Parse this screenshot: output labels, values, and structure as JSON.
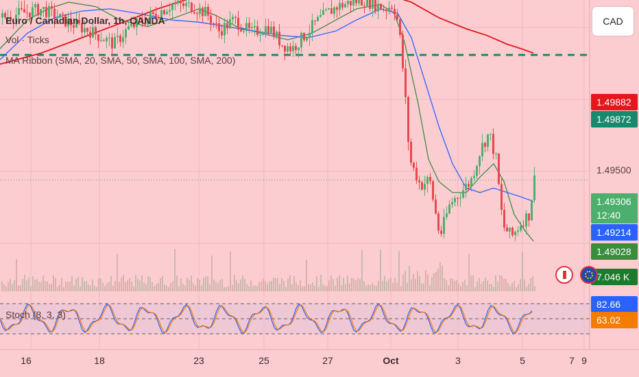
{
  "header": {
    "symbol_title": "Euro / Canadian Dollar, 1h, OANDA",
    "indicator_vol": "Vol · Ticks",
    "indicator_ma": "MA Ribbon (SMA, 20, SMA, 50, SMA, 100, SMA, 200)",
    "indicator_stoch": "Stoch (8, 3, 3)"
  },
  "currency_button": "CAD",
  "price_tags": [
    {
      "name": "sma200-price-tag",
      "label": "1.49882",
      "color": "#e5171c"
    },
    {
      "name": "alert-line-price-tag",
      "label": "1.49872",
      "color": "#178a6e"
    },
    {
      "name": "last-price-tag",
      "label": "1.49306",
      "color": "#4caf6d"
    },
    {
      "name": "countdown",
      "label": "12:40",
      "color": "#4caf6d"
    },
    {
      "name": "sma50-price-tag",
      "label": "1.49214",
      "color": "#2962ff"
    },
    {
      "name": "sma20-price-tag",
      "label": "1.49028",
      "color": "#388e3c"
    },
    {
      "name": "volume-tag",
      "label": "7.046 K",
      "color": "#2e7d32"
    },
    {
      "name": "stoch-k-tag",
      "label": "82.66",
      "color": "#2962ff"
    },
    {
      "name": "stoch-d-tag",
      "label": "63.02",
      "color": "#f57c00"
    }
  ],
  "price_axis_label": "1.49500",
  "x_axis": [
    {
      "label": "16",
      "bold": false
    },
    {
      "label": "18",
      "bold": false
    },
    {
      "label": "23",
      "bold": false
    },
    {
      "label": "25",
      "bold": false
    },
    {
      "label": "27",
      "bold": false
    },
    {
      "label": "Oct",
      "bold": true
    },
    {
      "label": "3",
      "bold": false
    },
    {
      "label": "5",
      "bold": false
    },
    {
      "label": "7",
      "bold": false
    },
    {
      "label": "9",
      "bold": false
    }
  ],
  "colors": {
    "background": "#fbcdd1",
    "bull": "#4caf6d",
    "bear": "#e5484d",
    "sma20": "#3d8b45",
    "sma50": "#2962ff",
    "sma200": "#e0171c",
    "alert_line": "#178a6e",
    "stoch_k": "#2962ff",
    "stoch_d": "#f57c00"
  },
  "chart_data": {
    "type": "line",
    "title": "Euro / Canadian Dollar, 1h, OANDA",
    "ylim": [
      1.4885,
      1.5012
    ],
    "alert_level": 1.49872,
    "last_price": 1.49306,
    "series": [
      {
        "name": "Close",
        "points": [
          [
            0,
            1.5004
          ],
          [
            60,
            1.5008
          ],
          [
            90,
            1.5003
          ],
          [
            130,
            1.4998
          ],
          [
            165,
            1.4992
          ],
          [
            185,
            1.4999
          ],
          [
            215,
            1.5004
          ],
          [
            250,
            1.501
          ],
          [
            280,
            1.5009
          ],
          [
            300,
            1.5006
          ],
          [
            318,
            1.4998
          ],
          [
            340,
            1.5003
          ],
          [
            365,
            1.4997
          ],
          [
            390,
            1.5
          ],
          [
            410,
            1.4992
          ],
          [
            425,
            1.499
          ],
          [
            440,
            1.4995
          ],
          [
            460,
            1.5002
          ],
          [
            475,
            1.5006
          ],
          [
            490,
            1.5009
          ],
          [
            510,
            1.5011
          ],
          [
            530,
            1.5012
          ],
          [
            545,
            1.501
          ],
          [
            560,
            1.5008
          ],
          [
            572,
            1.501
          ],
          [
            580,
            1.5001
          ],
          [
            588,
            1.4975
          ],
          [
            596,
            1.494
          ],
          [
            612,
            1.4928
          ],
          [
            625,
            1.4931
          ],
          [
            640,
            1.4905
          ],
          [
            655,
            1.492
          ],
          [
            670,
            1.4925
          ],
          [
            685,
            1.493
          ],
          [
            700,
            1.4945
          ],
          [
            712,
            1.4952
          ],
          [
            722,
            1.494
          ],
          [
            732,
            1.491
          ],
          [
            745,
            1.4905
          ],
          [
            760,
            1.4912
          ],
          [
            770,
            1.4915
          ],
          [
            778,
            1.4931
          ]
        ]
      },
      {
        "name": "SMA 20",
        "points": [
          [
            0,
            1.499
          ],
          [
            40,
            1.5003
          ],
          [
            70,
            1.5008
          ],
          [
            100,
            1.5011
          ],
          [
            140,
            1.5009
          ],
          [
            175,
            1.5003
          ],
          [
            215,
            1.5
          ],
          [
            255,
            1.5004
          ],
          [
            290,
            1.5008
          ],
          [
            315,
            1.5005
          ],
          [
            345,
            1.5
          ],
          [
            380,
            1.4997
          ],
          [
            420,
            1.4994
          ],
          [
            455,
            1.4997
          ],
          [
            490,
            1.5003
          ],
          [
            520,
            1.5008
          ],
          [
            555,
            1.501
          ],
          [
            575,
            1.5006
          ],
          [
            590,
            1.4993
          ],
          [
            610,
            1.4965
          ],
          [
            625,
            1.494
          ],
          [
            640,
            1.493
          ],
          [
            660,
            1.4925
          ],
          [
            680,
            1.4925
          ],
          [
            700,
            1.4932
          ],
          [
            720,
            1.4938
          ],
          [
            735,
            1.493
          ],
          [
            750,
            1.4915
          ],
          [
            765,
            1.4908
          ],
          [
            778,
            1.4903
          ]
        ]
      },
      {
        "name": "SMA 50",
        "points": [
          [
            0,
            1.4985
          ],
          [
            40,
            1.4997
          ],
          [
            80,
            1.5004
          ],
          [
            120,
            1.5007
          ],
          [
            160,
            1.5008
          ],
          [
            200,
            1.5006
          ],
          [
            250,
            1.5003
          ],
          [
            290,
            1.5002
          ],
          [
            330,
            1.5
          ],
          [
            370,
            1.4998
          ],
          [
            410,
            1.4996
          ],
          [
            450,
            1.4995
          ],
          [
            490,
            1.4998
          ],
          [
            520,
            1.5003
          ],
          [
            555,
            1.5008
          ],
          [
            580,
            1.5006
          ],
          [
            600,
            1.4995
          ],
          [
            620,
            1.4975
          ],
          [
            640,
            1.4955
          ],
          [
            660,
            1.4938
          ],
          [
            680,
            1.4927
          ],
          [
            700,
            1.4925
          ],
          [
            720,
            1.4927
          ],
          [
            740,
            1.4925
          ],
          [
            760,
            1.4923
          ],
          [
            778,
            1.4921
          ]
        ]
      },
      {
        "name": "SMA 200",
        "points": [
          [
            0,
            1.4983
          ],
          [
            60,
            1.4988
          ],
          [
            120,
            1.4995
          ],
          [
            180,
            1.5002
          ],
          [
            230,
            1.5008
          ],
          [
            270,
            1.5012
          ],
          [
            300,
            1.5015
          ],
          [
            340,
            1.5017
          ],
          [
            400,
            1.5018
          ],
          [
            460,
            1.5017
          ],
          [
            510,
            1.5016
          ],
          [
            560,
            1.5015
          ],
          [
            600,
            1.5011
          ],
          [
            640,
            1.5004
          ],
          [
            680,
            1.4999
          ],
          [
            710,
            1.4996
          ],
          [
            740,
            1.4992
          ],
          [
            760,
            1.499
          ],
          [
            778,
            1.4988
          ]
        ]
      }
    ]
  }
}
